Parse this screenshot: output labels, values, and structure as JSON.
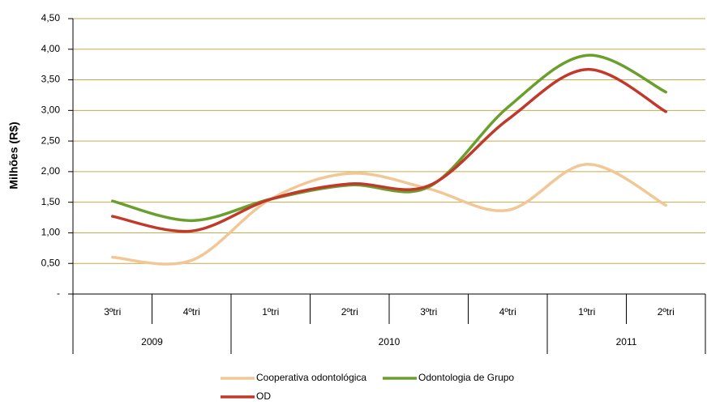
{
  "chart_data": {
    "type": "line",
    "y_label": "Milhões (R$)",
    "categories": [
      "3ºtri",
      "4ºtri",
      "1ºtri",
      "2ºtri",
      "3ºtri",
      "4ºtri",
      "1ºtri",
      "2ºtri"
    ],
    "groups": [
      {
        "label": "2009",
        "count": 2
      },
      {
        "label": "2010",
        "count": 4
      },
      {
        "label": "2011",
        "count": 2
      }
    ],
    "series": [
      {
        "name": "Cooperativa odontológica",
        "color": "#f1c795",
        "values": [
          0.6,
          0.55,
          1.55,
          1.97,
          1.72,
          1.37,
          2.12,
          1.45
        ]
      },
      {
        "name": "Odontologia de Grupo",
        "color": "#6a9f2e",
        "values": [
          1.52,
          1.2,
          1.55,
          1.78,
          1.75,
          3.05,
          3.9,
          3.3
        ]
      },
      {
        "name": "OD",
        "color": "#c0392b",
        "values": [
          1.27,
          1.03,
          1.55,
          1.8,
          1.77,
          2.85,
          3.67,
          2.98
        ]
      }
    ],
    "ylim": [
      0,
      4.5
    ],
    "yticks": [
      {
        "value": 0,
        "label": "-"
      },
      {
        "value": 0.5,
        "label": "0,50"
      },
      {
        "value": 1,
        "label": "1,00"
      },
      {
        "value": 1.5,
        "label": "1,50"
      },
      {
        "value": 2,
        "label": "2,00"
      },
      {
        "value": 2.5,
        "label": "2,50"
      },
      {
        "value": 3,
        "label": "3,00"
      },
      {
        "value": 3.5,
        "label": "3,50"
      },
      {
        "value": 4,
        "label": "4,00"
      },
      {
        "value": 4.5,
        "label": "4,50"
      }
    ],
    "grid": true,
    "grid_color": "#c9a94a",
    "legend": "bottom"
  }
}
